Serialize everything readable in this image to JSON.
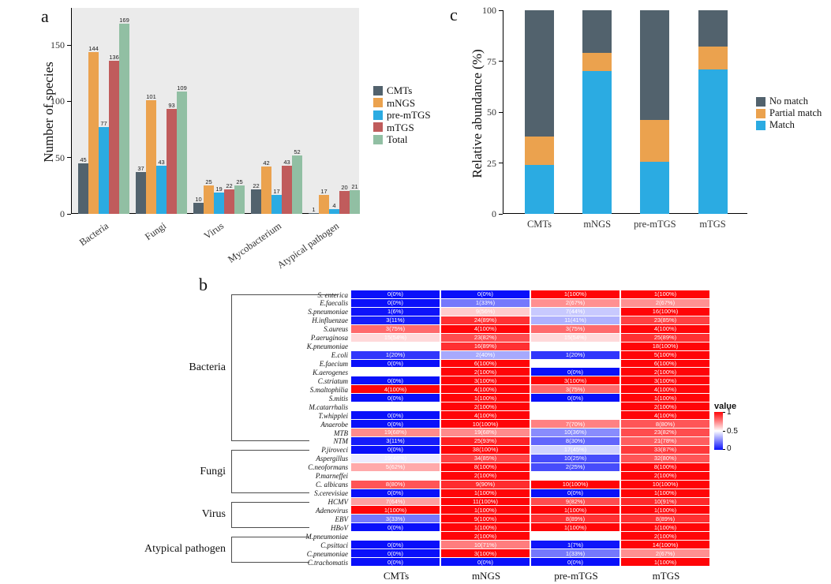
{
  "panels": {
    "a": {
      "letter": "a",
      "ylabel": "Number of species"
    },
    "b": {
      "letter": "b"
    },
    "c": {
      "letter": "c",
      "ylabel": "Relative abundance (%)"
    }
  },
  "chart_data": [
    {
      "id": "species-count-bar-chart",
      "type": "bar",
      "title": "",
      "xlabel": "",
      "ylabel": "Number of species",
      "categories": [
        "Bacteria",
        "Fungi",
        "Virus",
        "Mycobacterium",
        "Atypical pathogen"
      ],
      "series": [
        {
          "name": "CMTs",
          "color": "#52626d",
          "values": [
            45,
            37,
            10,
            22,
            1
          ]
        },
        {
          "name": "mNGS",
          "color": "#eba24e",
          "values": [
            144,
            101,
            25,
            42,
            17
          ]
        },
        {
          "name": "pre-mTGS",
          "color": "#2babe2",
          "values": [
            77,
            43,
            19,
            17,
            4
          ]
        },
        {
          "name": "mTGS",
          "color": "#c05c5c",
          "values": [
            136,
            93,
            22,
            43,
            20
          ]
        },
        {
          "name": "Total",
          "color": "#91bfa3",
          "values": [
            169,
            109,
            25,
            52,
            21
          ]
        }
      ],
      "yticks": [
        0,
        50,
        100,
        150
      ],
      "ylim": [
        0,
        183
      ],
      "grid": false,
      "legend_position": "right",
      "panel_background": "#ebebeb",
      "bar_labels": true
    },
    {
      "id": "relative-abundance-stacked-chart",
      "type": "bar",
      "subtype": "stacked",
      "title": "",
      "xlabel": "",
      "ylabel": "Relative abundance (%)",
      "categories": [
        "CMTs",
        "mNGS",
        "pre-mTGS",
        "mTGS"
      ],
      "series": [
        {
          "name": "Match",
          "color": "#2babe2",
          "values": [
            24,
            70,
            25.5,
            71
          ]
        },
        {
          "name": "Partial match",
          "color": "#eba24e",
          "values": [
            14,
            9,
            20.5,
            11
          ]
        },
        {
          "name": "No match",
          "color": "#52626d",
          "values": [
            62,
            21,
            54,
            18
          ]
        }
      ],
      "legend_order": [
        "No match",
        "Partial match",
        "Match"
      ],
      "yticks": [
        0,
        25,
        50,
        75,
        100
      ],
      "ylim": [
        0,
        100
      ],
      "grid": false,
      "legend_position": "right",
      "panel_background": "#ffffff"
    },
    {
      "id": "species-concordance-heatmap",
      "type": "heatmap",
      "columns": [
        "CMTs",
        "mNGS",
        "pre-mTGS",
        "mTGS"
      ],
      "color_scale": {
        "title": "value",
        "tick_labels": [
          "1",
          "0.5",
          "0"
        ],
        "high": "#ff0508",
        "mid": "#ffffff",
        "low": "#0a10fa"
      },
      "groups": [
        {
          "name": "Bacteria",
          "rows": [
            {
              "label": "S. enterica",
              "cells": [
                "0(0%)",
                "0(0%)",
                "1(100%)",
                "1(100%)"
              ]
            },
            {
              "label": "E.faecalis",
              "cells": [
                "0(0%)",
                "1(33%)",
                "2(67%)",
                "2(67%)"
              ]
            },
            {
              "label": "S.pneumoniae",
              "cells": [
                "1(6%)",
                "9(56%)",
                "7(44%)",
                "16(100%)"
              ]
            },
            {
              "label": "H.influenzae",
              "cells": [
                "3(11%)",
                "24(89%)",
                "11(41%)",
                "23(85%)"
              ]
            },
            {
              "label": "S.aureus",
              "cells": [
                "3(75%)",
                "4(100%)",
                "3(75%)",
                "4(100%)"
              ]
            },
            {
              "label": "P.aeruginosa",
              "cells": [
                "15(54%)",
                "23(82%)",
                "15(54%)",
                "25(89%)"
              ]
            },
            {
              "label": "K.pneumoniae",
              "cells": [
                "9(50%)",
                "16(89%)",
                "9(50%)",
                "18(100%)"
              ]
            },
            {
              "label": "E.coli",
              "cells": [
                "1(20%)",
                "2(40%)",
                "1(20%)",
                "5(100%)"
              ]
            },
            {
              "label": "E.faecium",
              "cells": [
                "0(0%)",
                "6(100%)",
                "3(50%)",
                "6(100%)"
              ]
            },
            {
              "label": "K.aerogenes",
              "cells": [
                "1(50%)",
                "2(100%)",
                "0(0%)",
                "2(100%)"
              ]
            },
            {
              "label": "C.striatum",
              "cells": [
                "0(0%)",
                "3(100%)",
                "3(100%)",
                "3(100%)"
              ]
            },
            {
              "label": "S.maltophilia",
              "cells": [
                "4(100%)",
                "4(100%)",
                "3(75%)",
                "4(100%)"
              ]
            },
            {
              "label": "S.mitis",
              "cells": [
                "0(0%)",
                "1(100%)",
                "0(0%)",
                "1(100%)"
              ]
            },
            {
              "label": "M.catarrhalis",
              "cells": [
                "1(50%)",
                "2(100%)",
                "1(50%)",
                "2(100%)"
              ]
            },
            {
              "label": "T.whipplei",
              "cells": [
                "0(0%)",
                "4(100%)",
                "2(50%)",
                "4(100%)"
              ]
            },
            {
              "label": "Anaerobe",
              "cells": [
                "0(0%)",
                "10(100%)",
                "7(70%)",
                "8(80%)"
              ]
            },
            {
              "label": "MTB",
              "cells": [
                "19(68%)",
                "19(68%)",
                "10(36%)",
                "23(82%)"
              ]
            },
            {
              "label": "NTM",
              "cells": [
                "3(11%)",
                "25(93%)",
                "8(30%)",
                "21(78%)"
              ]
            }
          ]
        },
        {
          "name": "Fungi",
          "rows": [
            {
              "label": "P.jiroveci",
              "cells": [
                "0(0%)",
                "38(100%)",
                "17(45%)",
                "33(87%)"
              ]
            },
            {
              "label": "Aspergillus",
              "cells": [
                "19(48%)",
                "34(85%)",
                "10(25%)",
                "32(80%)"
              ]
            },
            {
              "label": "C.neoformans",
              "cells": [
                "5(62%)",
                "8(100%)",
                "2(25%)",
                "8(100%)"
              ]
            },
            {
              "label": "P.marneffei",
              "cells": [
                "1(50%)",
                "2(100%)",
                "1(50%)",
                "2(100%)"
              ]
            },
            {
              "label": "C. albicans",
              "cells": [
                "8(80%)",
                "9(90%)",
                "10(100%)",
                "10(100%)"
              ]
            },
            {
              "label": "S.cerevisiae",
              "cells": [
                "0(0%)",
                "1(100%)",
                "0(0%)",
                "1(100%)"
              ]
            }
          ]
        },
        {
          "name": "Virus",
          "rows": [
            {
              "label": "HCMV",
              "cells": [
                "7(64%)",
                "11(100%)",
                "9(82%)",
                "10(91%)"
              ]
            },
            {
              "label": "Adenovirus",
              "cells": [
                "1(100%)",
                "1(100%)",
                "1(100%)",
                "1(100%)"
              ]
            },
            {
              "label": "EBV",
              "cells": [
                "3(33%)",
                "9(100%)",
                "8(89%)",
                "8(89%)"
              ]
            },
            {
              "label": "HBoV",
              "cells": [
                "0(0%)",
                "1(100%)",
                "1(100%)",
                "1(100%)"
              ]
            }
          ]
        },
        {
          "name": "Atypical pathogen",
          "rows": [
            {
              "label": "M.pneumoniae",
              "cells": [
                "1(50%)",
                "2(100%)",
                "1(50%)",
                "2(100%)"
              ]
            },
            {
              "label": "C.psittaci",
              "cells": [
                "0(0%)",
                "10(71%)",
                "1(7%)",
                "14(100%)"
              ]
            },
            {
              "label": "C.pneumoniae",
              "cells": [
                "0(0%)",
                "3(100%)",
                "1(33%)",
                "2(67%)"
              ]
            },
            {
              "label": "C.trachomatis",
              "cells": [
                "0(0%)",
                "0(0%)",
                "0(0%)",
                "1(100%)"
              ]
            }
          ]
        }
      ]
    }
  ]
}
